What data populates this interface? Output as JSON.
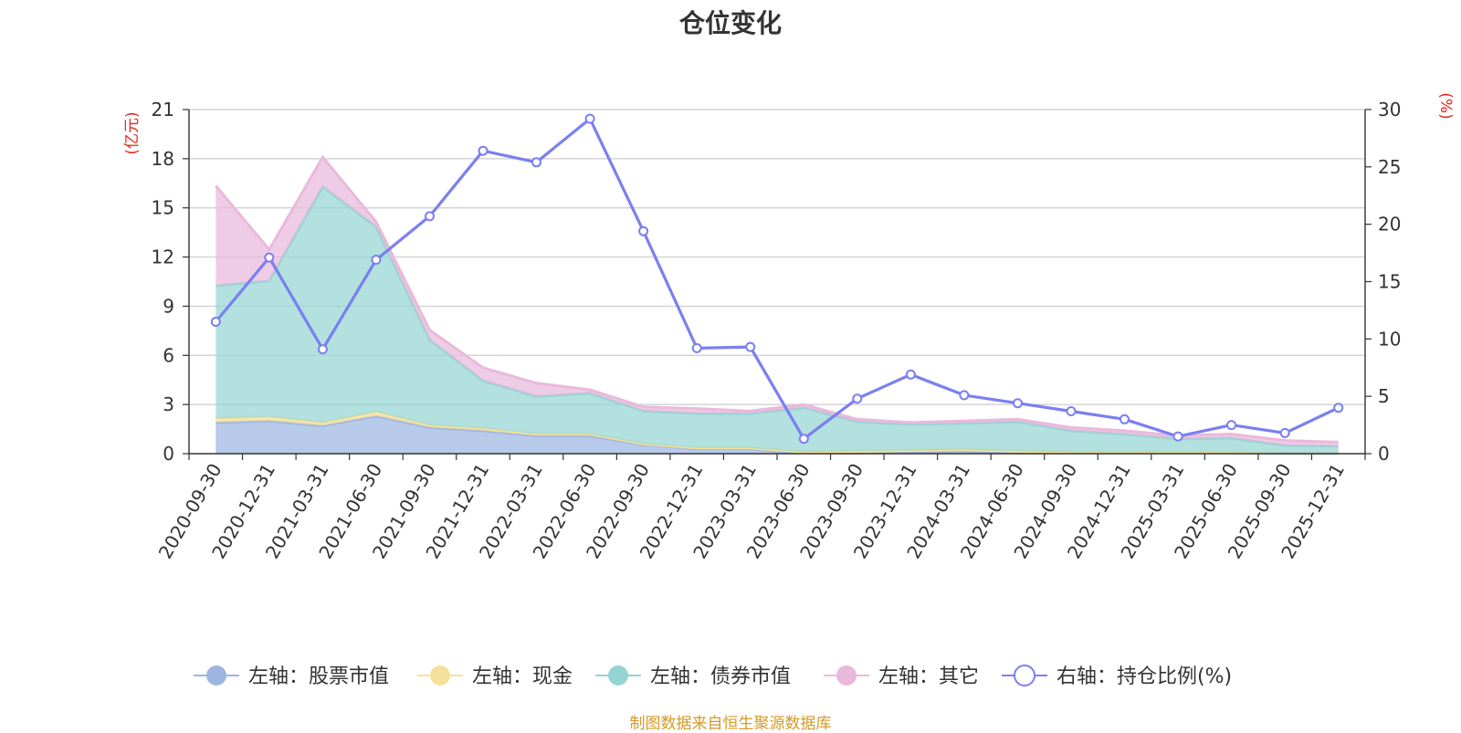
{
  "chart_data": {
    "type": "area",
    "title": "仓位变化",
    "source": "制图数据来自恒生聚源数据库",
    "left_axis_unit": "(亿元)",
    "right_axis_unit": "(%)",
    "left_ylim": [
      0,
      21
    ],
    "left_ticks": [
      0,
      3,
      6,
      9,
      12,
      15,
      18,
      21
    ],
    "right_ylim": [
      0,
      30
    ],
    "right_ticks": [
      0,
      5,
      10,
      15,
      20,
      25,
      30
    ],
    "categories": [
      "2020-09-30",
      "2020-12-31",
      "2021-03-31",
      "2021-06-30",
      "2021-09-30",
      "2021-12-31",
      "2022-03-31",
      "2022-06-30",
      "2022-09-30",
      "2022-12-31",
      "2023-03-31",
      "2023-06-30",
      "2023-09-30",
      "2023-12-31",
      "2024-03-31",
      "2024-06-30",
      "2024-09-30",
      "2024-12-31",
      "2025-03-31",
      "2025-06-30",
      "2025-09-30",
      "2025-12-31"
    ],
    "series": [
      {
        "name": "左轴：股票市值",
        "axis": "left",
        "kind": "stack",
        "color": "#9db5e0",
        "values": [
          1.9,
          2.0,
          1.7,
          2.3,
          1.6,
          1.4,
          1.1,
          1.1,
          0.55,
          0.3,
          0.3,
          0.05,
          0.05,
          0.1,
          0.15,
          0.05,
          0.05,
          0.05,
          0.05,
          0.05,
          0.02,
          0.02
        ]
      },
      {
        "name": "左轴：现金",
        "axis": "left",
        "kind": "stack",
        "color": "#f5e19b",
        "values": [
          0.25,
          0.25,
          0.2,
          0.25,
          0.15,
          0.15,
          0.1,
          0.1,
          0.05,
          0.05,
          0.05,
          0.05,
          0.1,
          0.1,
          0.1,
          0.1,
          0.05,
          0.05,
          0.05,
          0.05,
          0.03,
          0.03
        ]
      },
      {
        "name": "左轴：债券市值",
        "axis": "left",
        "kind": "stack",
        "color": "#94d5d3",
        "values": [
          8.1,
          8.3,
          14.4,
          11.3,
          5.2,
          2.9,
          2.3,
          2.5,
          2.0,
          2.1,
          2.1,
          2.7,
          1.8,
          1.6,
          1.6,
          1.8,
          1.3,
          1.1,
          0.8,
          0.85,
          0.45,
          0.4
        ]
      },
      {
        "name": "左轴：其它",
        "axis": "left",
        "kind": "stack",
        "color": "#e9b9dc",
        "values": [
          6.1,
          1.9,
          1.8,
          0.3,
          0.6,
          0.8,
          0.8,
          0.2,
          0.25,
          0.3,
          0.15,
          0.2,
          0.15,
          0.1,
          0.15,
          0.15,
          0.2,
          0.2,
          0.2,
          0.25,
          0.3,
          0.25
        ]
      },
      {
        "name": "右轴：持仓比例(%)",
        "axis": "right",
        "kind": "line",
        "color": "#7b7ff0",
        "values": [
          11.5,
          17.1,
          9.1,
          16.9,
          20.7,
          26.4,
          25.4,
          29.2,
          19.4,
          9.2,
          9.3,
          1.3,
          4.8,
          6.9,
          5.1,
          4.4,
          3.7,
          3.0,
          1.5,
          2.5,
          1.8,
          4.0
        ]
      }
    ]
  }
}
